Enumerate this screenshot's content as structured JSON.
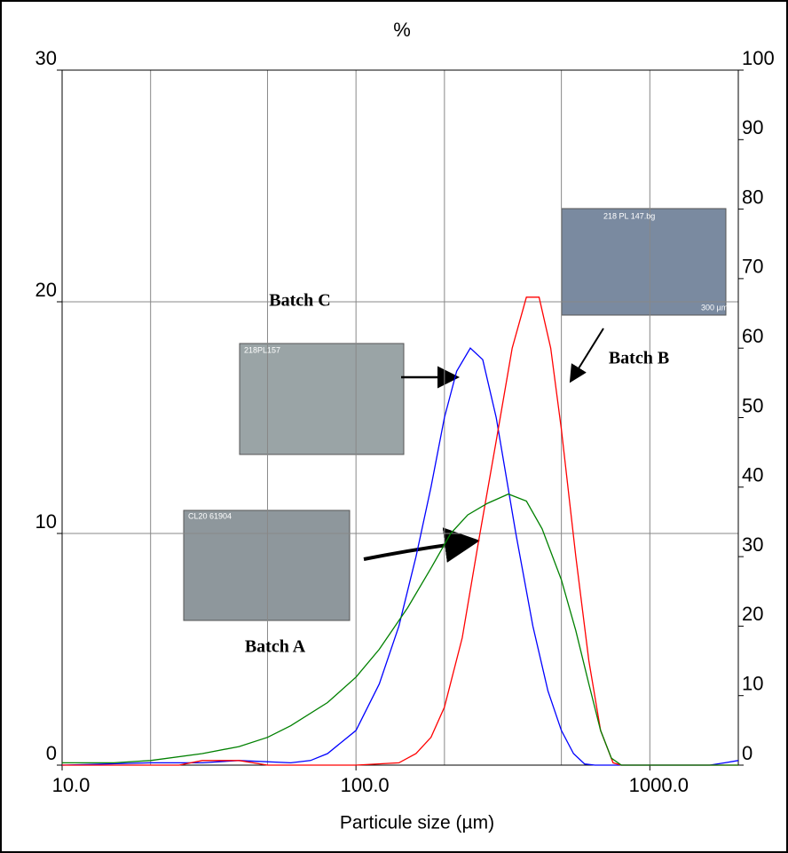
{
  "chart_data": {
    "type": "line",
    "title": "%",
    "x_label": "Particule size (µm)",
    "log_x": true,
    "xlim": [
      10,
      2000
    ],
    "xticks": [
      {
        "value": 10,
        "label": "10.0"
      },
      {
        "value": 100,
        "label": "100.0"
      },
      {
        "value": 1000,
        "label": "1000.0"
      }
    ],
    "xgrid": [
      20,
      50,
      100,
      200,
      500,
      1000
    ],
    "ylim": [
      0,
      30
    ],
    "yticks": [
      0,
      10,
      20,
      30
    ],
    "y2lim": [
      0,
      100
    ],
    "y2ticks": [
      0,
      10,
      20,
      30,
      40,
      50,
      60,
      70,
      80,
      90,
      100
    ],
    "grid": true,
    "series": [
      {
        "name": "Batch C",
        "color": "#0000ff",
        "x": [
          10,
          20,
          30,
          40,
          60,
          70,
          80,
          100,
          120,
          140,
          160,
          180,
          200,
          220,
          245,
          270,
          300,
          350,
          400,
          450,
          500,
          550,
          600,
          650,
          1000,
          1600,
          1800,
          2000
        ],
        "values": [
          0,
          0.1,
          0.1,
          0.2,
          0.1,
          0.2,
          0.5,
          1.5,
          3.5,
          6,
          9,
          12,
          15,
          17,
          18,
          17.5,
          15,
          10,
          6,
          3.2,
          1.5,
          0.5,
          0.05,
          0,
          0,
          0,
          0.1,
          0.2
        ]
      },
      {
        "name": "Batch B",
        "color": "#ff0000",
        "x": [
          10,
          25,
          30,
          40,
          50,
          100,
          140,
          160,
          180,
          200,
          230,
          260,
          300,
          340,
          380,
          420,
          460,
          500,
          560,
          620,
          680,
          750,
          800,
          2000
        ],
        "values": [
          0,
          0,
          0.2,
          0.2,
          0,
          0,
          0.1,
          0.5,
          1.2,
          2.5,
          5.5,
          9.5,
          14,
          18,
          20.2,
          20.2,
          18,
          14.5,
          9,
          4.5,
          1.5,
          0.1,
          0,
          0
        ]
      },
      {
        "name": "Batch A",
        "color": "#008000",
        "x": [
          10,
          15,
          20,
          30,
          40,
          50,
          60,
          80,
          100,
          120,
          150,
          180,
          210,
          240,
          280,
          330,
          380,
          430,
          500,
          560,
          620,
          680,
          740,
          800,
          2000
        ],
        "values": [
          0.1,
          0.1,
          0.2,
          0.5,
          0.8,
          1.2,
          1.7,
          2.7,
          3.8,
          5,
          6.8,
          8.5,
          10,
          10.8,
          11.3,
          11.7,
          11.4,
          10.2,
          8,
          5.8,
          3.5,
          1.5,
          0.3,
          0,
          0
        ]
      }
    ],
    "photo_labels": [
      "218PL157",
      "CL20 61904",
      "218 PL 147.bg",
      "300 µm"
    ]
  }
}
